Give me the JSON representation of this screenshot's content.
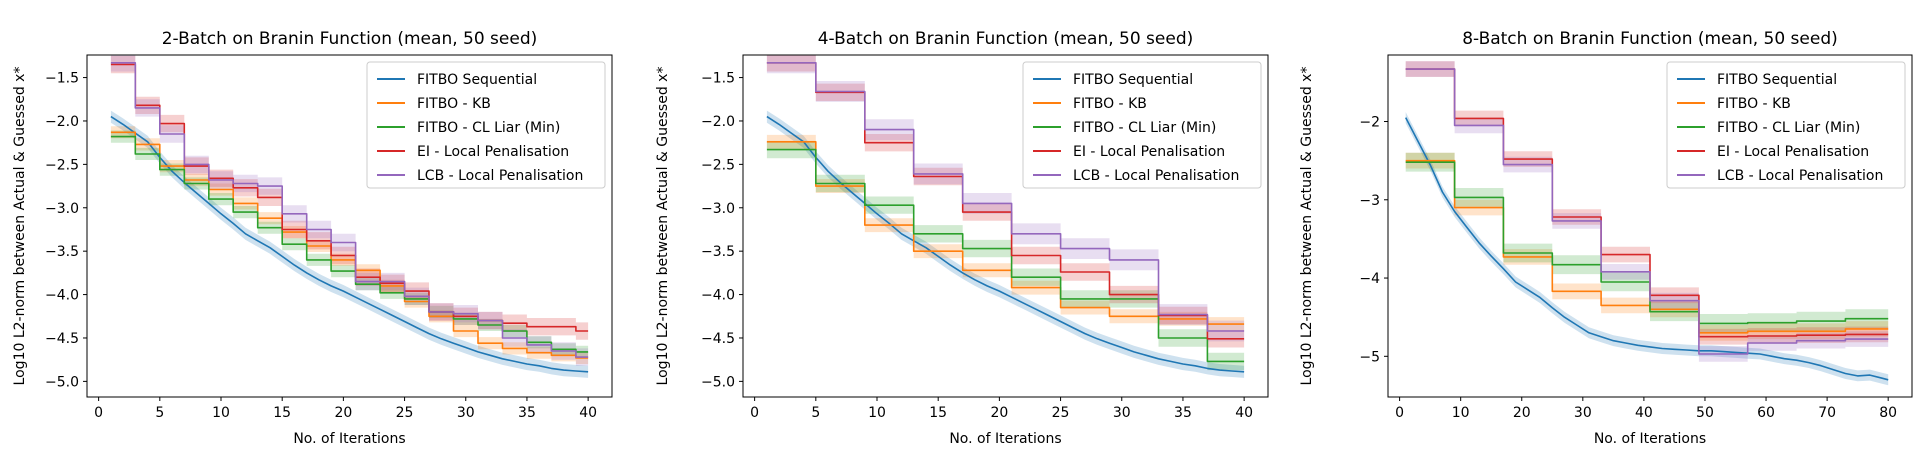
{
  "chart_data": [
    {
      "type": "line",
      "title": "2-Batch on Branin Function (mean, 50 seed)",
      "xlabel": "No. of Iterations",
      "ylabel": "Log10 L2-norm between Actual & Guessed x*",
      "xlim": [
        -0.95,
        41.95
      ],
      "ylim": [
        -5.18,
        -1.24
      ],
      "xticks": [
        0,
        5,
        10,
        15,
        20,
        25,
        30,
        35,
        40
      ],
      "yticks": [
        -5.0,
        -4.5,
        -4.0,
        -3.5,
        -3.0,
        -2.5,
        -2.0,
        -1.5
      ],
      "ytick_labels": [
        "−5.0",
        "−4.5",
        "−4.0",
        "−3.5",
        "−3.0",
        "−2.5",
        "−2.0",
        "−1.5"
      ],
      "grid": false,
      "legend_position": "top-right",
      "series": [
        {
          "name": "FITBO Sequential",
          "color": "#1f77b4",
          "step": false,
          "x": [
            1,
            2,
            3,
            4,
            5,
            6,
            7,
            8,
            9,
            10,
            11,
            12,
            13,
            14,
            15,
            16,
            17,
            18,
            19,
            20,
            21,
            22,
            23,
            24,
            25,
            26,
            27,
            28,
            29,
            30,
            31,
            32,
            33,
            34,
            35,
            36,
            37,
            38,
            39,
            40
          ],
          "y": [
            -1.95,
            -2.04,
            -2.14,
            -2.24,
            -2.42,
            -2.58,
            -2.71,
            -2.83,
            -2.95,
            -3.07,
            -3.18,
            -3.3,
            -3.38,
            -3.46,
            -3.56,
            -3.66,
            -3.75,
            -3.83,
            -3.9,
            -3.96,
            -4.03,
            -4.1,
            -4.17,
            -4.24,
            -4.31,
            -4.38,
            -4.45,
            -4.51,
            -4.56,
            -4.61,
            -4.66,
            -4.7,
            -4.74,
            -4.77,
            -4.8,
            -4.82,
            -4.85,
            -4.87,
            -4.88,
            -4.89
          ],
          "band": 0.07
        },
        {
          "name": "FITBO - KB",
          "color": "#ff7f0e",
          "step": true,
          "x": [
            1,
            3,
            5,
            7,
            9,
            11,
            13,
            15,
            17,
            19,
            21,
            23,
            25,
            27,
            29,
            31,
            33,
            35,
            37,
            39,
            40
          ],
          "y": [
            -2.13,
            -2.27,
            -2.52,
            -2.68,
            -2.79,
            -2.95,
            -3.12,
            -3.28,
            -3.44,
            -3.6,
            -3.72,
            -3.9,
            -4.08,
            -4.25,
            -4.42,
            -4.56,
            -4.62,
            -4.67,
            -4.7,
            -4.73,
            -4.73
          ],
          "band": 0.07
        },
        {
          "name": "FITBO - CL Liar (Min)",
          "color": "#2ca02c",
          "step": true,
          "x": [
            1,
            3,
            5,
            7,
            9,
            11,
            13,
            15,
            17,
            19,
            21,
            23,
            25,
            27,
            29,
            31,
            33,
            35,
            37,
            39,
            40
          ],
          "y": [
            -2.18,
            -2.38,
            -2.56,
            -2.72,
            -2.9,
            -3.05,
            -3.23,
            -3.42,
            -3.6,
            -3.73,
            -3.88,
            -3.98,
            -4.05,
            -4.2,
            -4.28,
            -4.35,
            -4.42,
            -4.55,
            -4.63,
            -4.66,
            -4.66
          ],
          "band": 0.07
        },
        {
          "name": "EI - Local Penalisation",
          "color": "#d62728",
          "step": true,
          "x": [
            1,
            3,
            5,
            7,
            9,
            11,
            13,
            15,
            17,
            19,
            21,
            23,
            25,
            27,
            29,
            31,
            33,
            35,
            37,
            39,
            40
          ],
          "y": [
            -1.35,
            -1.82,
            -2.03,
            -2.52,
            -2.66,
            -2.77,
            -2.88,
            -3.25,
            -3.38,
            -3.55,
            -3.8,
            -3.87,
            -3.96,
            -4.2,
            -4.25,
            -4.3,
            -4.33,
            -4.37,
            -4.37,
            -4.42,
            -4.42
          ],
          "band": 0.1
        },
        {
          "name": "LCB - Local Penalisation",
          "color": "#9467bd",
          "step": true,
          "x": [
            1,
            3,
            5,
            7,
            9,
            11,
            13,
            15,
            17,
            19,
            21,
            23,
            25,
            27,
            29,
            31,
            33,
            35,
            37,
            39,
            40
          ],
          "y": [
            -1.33,
            -1.85,
            -2.15,
            -2.5,
            -2.68,
            -2.72,
            -2.75,
            -3.07,
            -3.25,
            -3.4,
            -3.85,
            -3.85,
            -4.02,
            -4.2,
            -4.22,
            -4.3,
            -4.5,
            -4.58,
            -4.65,
            -4.72,
            -4.72
          ],
          "band": 0.1
        }
      ]
    },
    {
      "type": "line",
      "title": "4-Batch on Branin Function (mean, 50 seed)",
      "xlabel": "No. of Iterations",
      "ylabel": "Log10 L2-norm between Actual & Guessed x*",
      "xlim": [
        -0.95,
        41.95
      ],
      "ylim": [
        -5.18,
        -1.24
      ],
      "xticks": [
        0,
        5,
        10,
        15,
        20,
        25,
        30,
        35,
        40
      ],
      "yticks": [
        -5.0,
        -4.5,
        -4.0,
        -3.5,
        -3.0,
        -2.5,
        -2.0,
        -1.5
      ],
      "ytick_labels": [
        "−5.0",
        "−4.5",
        "−4.0",
        "−3.5",
        "−3.0",
        "−2.5",
        "−2.0",
        "−1.5"
      ],
      "grid": false,
      "legend_position": "top-right",
      "series": [
        {
          "name": "FITBO Sequential",
          "color": "#1f77b4",
          "step": false,
          "x": [
            1,
            2,
            3,
            4,
            5,
            6,
            7,
            8,
            9,
            10,
            11,
            12,
            13,
            14,
            15,
            16,
            17,
            18,
            19,
            20,
            21,
            22,
            23,
            24,
            25,
            26,
            27,
            28,
            29,
            30,
            31,
            32,
            33,
            34,
            35,
            36,
            37,
            38,
            39,
            40
          ],
          "y": [
            -1.95,
            -2.04,
            -2.14,
            -2.24,
            -2.42,
            -2.58,
            -2.71,
            -2.83,
            -2.95,
            -3.07,
            -3.18,
            -3.3,
            -3.38,
            -3.46,
            -3.56,
            -3.66,
            -3.75,
            -3.83,
            -3.9,
            -3.96,
            -4.03,
            -4.1,
            -4.17,
            -4.24,
            -4.31,
            -4.38,
            -4.45,
            -4.51,
            -4.56,
            -4.61,
            -4.66,
            -4.7,
            -4.74,
            -4.77,
            -4.8,
            -4.82,
            -4.85,
            -4.87,
            -4.88,
            -4.89
          ],
          "band": 0.07
        },
        {
          "name": "FITBO - KB",
          "color": "#ff7f0e",
          "step": true,
          "x": [
            1,
            5,
            9,
            13,
            17,
            21,
            25,
            29,
            33,
            37,
            40
          ],
          "y": [
            -2.24,
            -2.75,
            -3.2,
            -3.5,
            -3.72,
            -3.92,
            -4.15,
            -4.25,
            -4.28,
            -4.34,
            -4.34
          ],
          "band": 0.08
        },
        {
          "name": "FITBO - CL Liar (Min)",
          "color": "#2ca02c",
          "step": true,
          "x": [
            1,
            5,
            9,
            13,
            17,
            21,
            25,
            29,
            33,
            37,
            40
          ],
          "y": [
            -2.33,
            -2.72,
            -2.97,
            -3.3,
            -3.47,
            -3.8,
            -4.05,
            -4.05,
            -4.5,
            -4.77,
            -4.77
          ],
          "band": 0.1
        },
        {
          "name": "EI - Local Penalisation",
          "color": "#d62728",
          "step": true,
          "x": [
            1,
            5,
            9,
            13,
            17,
            21,
            25,
            29,
            33,
            37,
            40
          ],
          "y": [
            -1.33,
            -1.67,
            -2.25,
            -2.64,
            -3.05,
            -3.55,
            -3.74,
            -4.0,
            -4.24,
            -4.51,
            -4.51
          ],
          "band": 0.1
        },
        {
          "name": "LCB - Local Penalisation",
          "color": "#9467bd",
          "step": true,
          "x": [
            1,
            5,
            9,
            13,
            17,
            21,
            25,
            29,
            33,
            37,
            40
          ],
          "y": [
            -1.33,
            -1.66,
            -2.1,
            -2.61,
            -2.95,
            -3.3,
            -3.47,
            -3.6,
            -4.23,
            -4.42,
            -4.42
          ],
          "band": 0.12
        }
      ]
    },
    {
      "type": "line",
      "title": "8-Batch on Branin Function (mean, 50 seed)",
      "xlabel": "No. of Iterations",
      "ylabel": "Log10 L2-norm between Actual & Guessed x*",
      "xlim": [
        -1.9,
        83.9
      ],
      "ylim": [
        -5.52,
        -1.15
      ],
      "xticks": [
        0,
        10,
        20,
        30,
        40,
        50,
        60,
        70,
        80
      ],
      "yticks": [
        -5,
        -4,
        -3,
        -2
      ],
      "ytick_labels": [
        "−5",
        "−4",
        "−3",
        "−2"
      ],
      "grid": false,
      "legend_position": "top-right",
      "series": [
        {
          "name": "FITBO Sequential",
          "color": "#1f77b4",
          "step": false,
          "x": [
            1,
            3,
            5,
            7,
            9,
            11,
            13,
            15,
            17,
            19,
            21,
            23,
            25,
            27,
            29,
            31,
            33,
            35,
            37,
            39,
            41,
            43,
            45,
            47,
            49,
            51,
            53,
            55,
            57,
            59,
            61,
            63,
            65,
            67,
            69,
            71,
            73,
            75,
            77,
            79,
            80
          ],
          "y": [
            -1.95,
            -2.25,
            -2.55,
            -2.9,
            -3.15,
            -3.35,
            -3.55,
            -3.72,
            -3.88,
            -4.05,
            -4.15,
            -4.25,
            -4.38,
            -4.5,
            -4.6,
            -4.7,
            -4.75,
            -4.8,
            -4.83,
            -4.86,
            -4.88,
            -4.9,
            -4.91,
            -4.92,
            -4.93,
            -4.93,
            -4.94,
            -4.95,
            -4.96,
            -4.97,
            -5.0,
            -5.03,
            -5.05,
            -5.08,
            -5.12,
            -5.17,
            -5.22,
            -5.25,
            -5.24,
            -5.28,
            -5.3
          ],
          "band": 0.07
        },
        {
          "name": "FITBO - KB",
          "color": "#ff7f0e",
          "step": true,
          "x": [
            1,
            9,
            17,
            25,
            33,
            41,
            49,
            57,
            65,
            73,
            80
          ],
          "y": [
            -2.5,
            -3.1,
            -3.73,
            -4.17,
            -4.35,
            -4.4,
            -4.7,
            -4.68,
            -4.68,
            -4.65,
            -4.65
          ],
          "band": 0.1
        },
        {
          "name": "FITBO - CL Liar (Min)",
          "color": "#2ca02c",
          "step": true,
          "x": [
            1,
            9,
            17,
            25,
            33,
            41,
            49,
            57,
            65,
            73,
            80
          ],
          "y": [
            -2.52,
            -2.97,
            -3.68,
            -3.83,
            -4.05,
            -4.43,
            -4.58,
            -4.57,
            -4.55,
            -4.52,
            -4.52
          ],
          "band": 0.12
        },
        {
          "name": "EI - Local Penalisation",
          "color": "#d62728",
          "step": true,
          "x": [
            1,
            9,
            17,
            25,
            33,
            41,
            49,
            57,
            65,
            73,
            80
          ],
          "y": [
            -1.33,
            -1.96,
            -2.48,
            -3.22,
            -3.7,
            -4.22,
            -4.75,
            -4.74,
            -4.73,
            -4.72,
            -4.72
          ],
          "band": 0.1
        },
        {
          "name": "LCB - Local Penalisation",
          "color": "#9467bd",
          "step": true,
          "x": [
            1,
            9,
            17,
            25,
            33,
            41,
            49,
            57,
            65,
            73,
            80
          ],
          "y": [
            -1.33,
            -2.05,
            -2.55,
            -3.27,
            -3.92,
            -4.29,
            -4.97,
            -4.83,
            -4.8,
            -4.78,
            -4.78
          ],
          "band": 0.1
        }
      ]
    }
  ]
}
